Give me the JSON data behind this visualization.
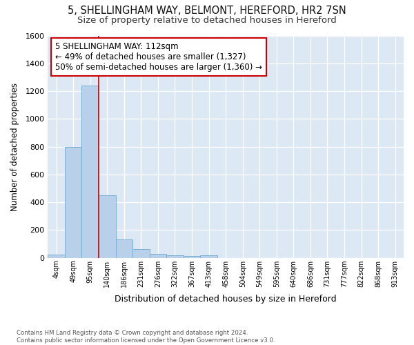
{
  "title_line1": "5, SHELLINGHAM WAY, BELMONT, HEREFORD, HR2 7SN",
  "title_line2": "Size of property relative to detached houses in Hereford",
  "xlabel": "Distribution of detached houses by size in Hereford",
  "ylabel": "Number of detached properties",
  "footnote": "Contains HM Land Registry data © Crown copyright and database right 2024.\nContains public sector information licensed under the Open Government Licence v3.0.",
  "bar_labels": [
    "4sqm",
    "49sqm",
    "95sqm",
    "140sqm",
    "186sqm",
    "231sqm",
    "276sqm",
    "322sqm",
    "367sqm",
    "413sqm",
    "458sqm",
    "504sqm",
    "549sqm",
    "595sqm",
    "640sqm",
    "686sqm",
    "731sqm",
    "777sqm",
    "822sqm",
    "868sqm",
    "913sqm"
  ],
  "bar_values": [
    25,
    800,
    1240,
    450,
    130,
    62,
    27,
    18,
    15,
    18,
    0,
    0,
    0,
    0,
    0,
    0,
    0,
    0,
    0,
    0,
    0
  ],
  "bar_color": "#b8d0ea",
  "bar_edgecolor": "#7aafd4",
  "red_line_x": 2.5,
  "annotation_text": "5 SHELLINGHAM WAY: 112sqm\n← 49% of detached houses are smaller (1,327)\n50% of semi-detached houses are larger (1,360) →",
  "annotation_box_color": "#ffffff",
  "annotation_box_edgecolor": "#cc0000",
  "ylim": [
    0,
    1600
  ],
  "yticks": [
    0,
    200,
    400,
    600,
    800,
    1000,
    1200,
    1400,
    1600
  ],
  "background_color": "#dde8f5",
  "grid_color": "#ffffff",
  "red_line_color": "#cc0000",
  "title_fontsize": 10.5,
  "subtitle_fontsize": 9.5,
  "fig_bg": "#ffffff"
}
